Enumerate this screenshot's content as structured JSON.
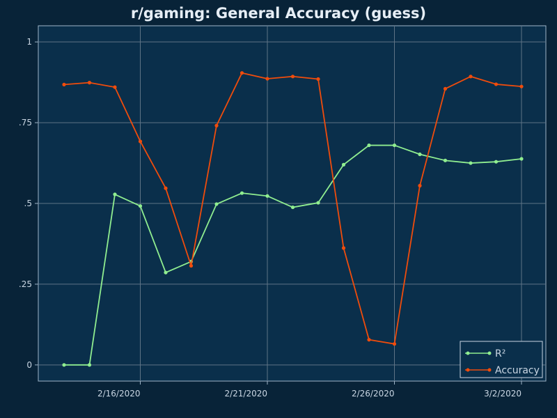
{
  "chart_data": {
    "type": "line",
    "title": "r/gaming: General Accuracy (guess)",
    "xlabel": "",
    "ylabel": "",
    "x": [
      "2/13/2020",
      "2/14/2020",
      "2/15/2020",
      "2/16/2020",
      "2/17/2020",
      "2/18/2020",
      "2/19/2020",
      "2/20/2020",
      "2/21/2020",
      "2/22/2020",
      "2/23/2020",
      "2/24/2020",
      "2/25/2020",
      "2/26/2020",
      "2/27/2020",
      "2/28/2020",
      "2/29/2020",
      "3/1/2020",
      "3/2/2020"
    ],
    "x_ticks": [
      "2/16/2020",
      "2/21/2020",
      "2/26/2020",
      "3/2/2020"
    ],
    "y_ticks": [
      "0",
      ".25",
      ".5",
      ".75",
      "1"
    ],
    "ylim": [
      -0.05,
      1.05
    ],
    "grid": true,
    "legend_position": "bottom-right",
    "series": [
      {
        "name": "R²",
        "color": "#90ee90",
        "values": [
          0.0,
          0.0,
          0.528,
          0.492,
          0.286,
          0.32,
          0.498,
          0.532,
          0.523,
          0.488,
          0.502,
          0.62,
          0.68,
          0.68,
          0.652,
          0.633,
          0.625,
          0.629,
          0.638
        ]
      },
      {
        "name": "Accuracy",
        "color": "#f04c0c",
        "values": [
          0.868,
          0.874,
          0.86,
          0.692,
          0.547,
          0.307,
          0.741,
          0.904,
          0.886,
          0.893,
          0.885,
          0.362,
          0.078,
          0.065,
          0.555,
          0.855,
          0.893,
          0.869,
          0.862
        ]
      }
    ]
  }
}
